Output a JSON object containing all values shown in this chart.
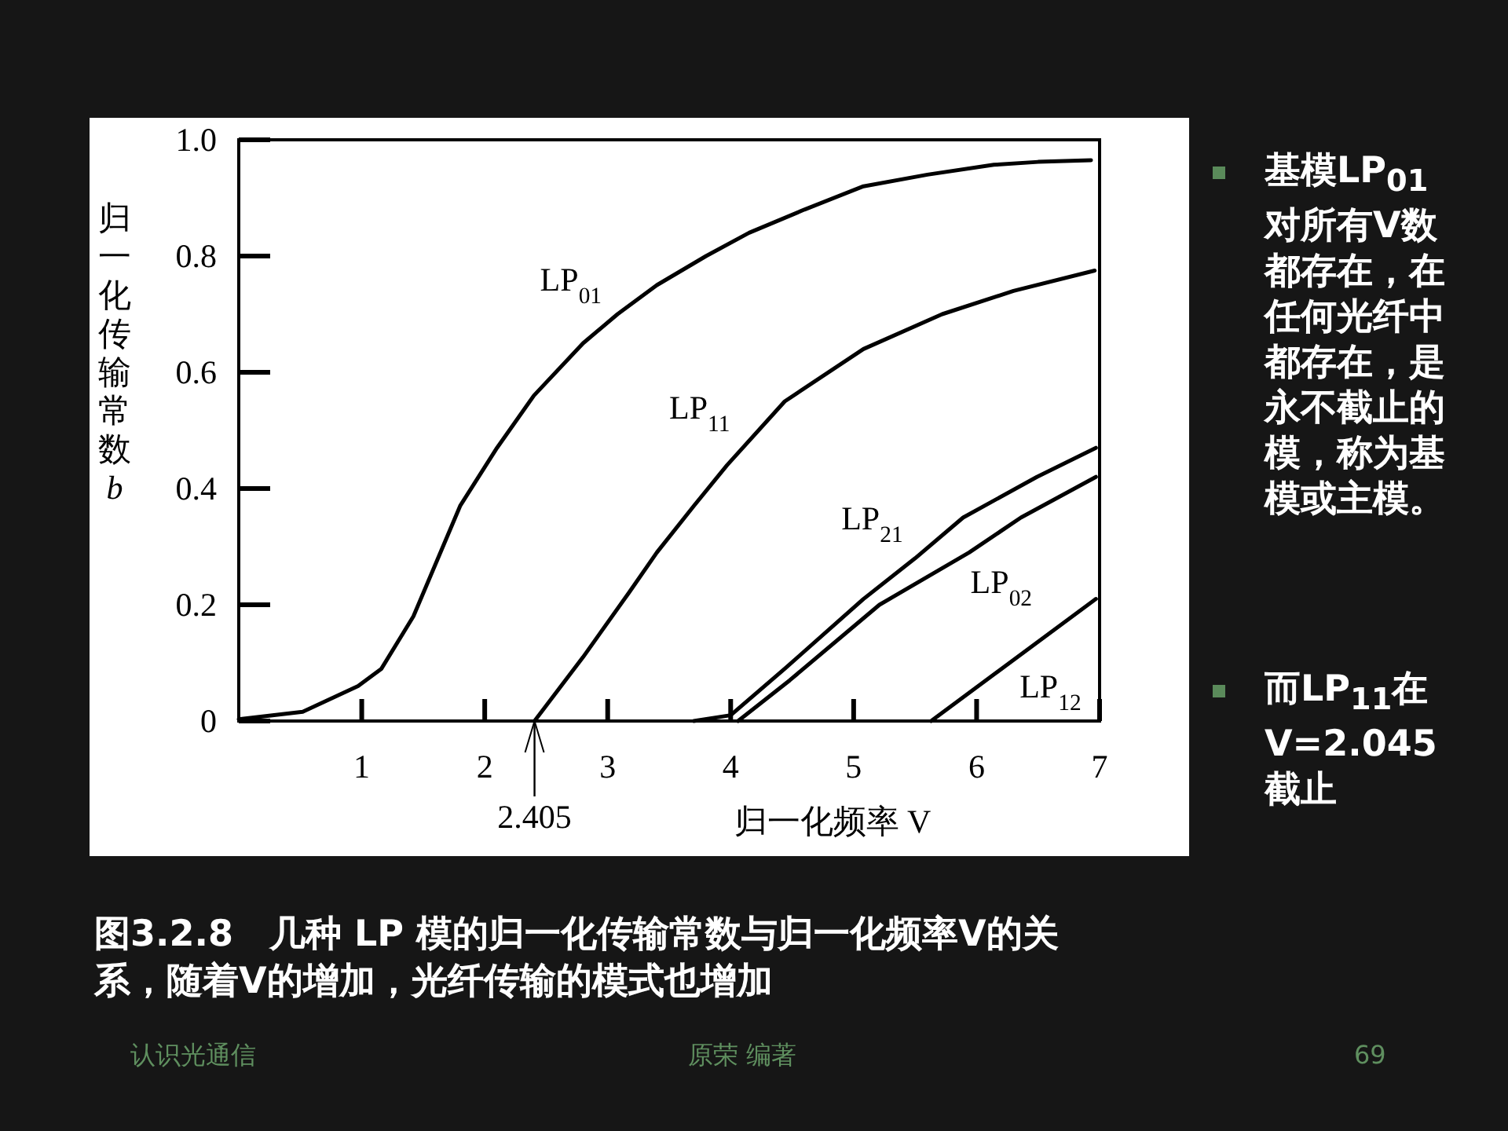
{
  "chart_data": {
    "type": "line",
    "title": "图3.2.8　几种 LP 模的归一化传输常数与归一化频率V的关系，随着V的增加，光纤传输的模式也增加",
    "xlabel": "归一化频率 V",
    "ylabel": "归一化传输常数 b",
    "xlim": [
      0,
      7
    ],
    "ylim": [
      0,
      1
    ],
    "xticks": [
      1,
      2,
      3,
      4,
      5,
      6,
      7
    ],
    "yticks": [
      0,
      0.2,
      0.4,
      0.6,
      0.8,
      {
        "value": 1,
        "label": "1.0"
      }
    ],
    "series": [
      {
        "name": "LP$_{01}$",
        "color": "#000000",
        "x": [
          0,
          0.52,
          0.97,
          1.16,
          1.42,
          1.8,
          2.1,
          2.4,
          2.8,
          3.08,
          3.4,
          3.8,
          4.15,
          4.6,
          5.08,
          5.6,
          6.14,
          6.5,
          6.93
        ],
        "values": [
          0.003,
          0.016,
          0.06,
          0.09,
          0.18,
          0.37,
          0.47,
          0.56,
          0.65,
          0.7,
          0.75,
          0.8,
          0.84,
          0.88,
          0.92,
          0.94,
          0.957,
          0.962,
          0.965
        ]
      },
      {
        "name": "LP$_{11}$",
        "color": "#000000",
        "x": [
          2.405,
          2.8,
          3.17,
          3.4,
          3.7,
          3.97,
          4.44,
          5.08,
          5.72,
          6.3,
          6.96
        ],
        "values": [
          0,
          0.11,
          0.22,
          0.29,
          0.37,
          0.44,
          0.55,
          0.64,
          0.7,
          0.74,
          0.775
        ]
      },
      {
        "name": "LP$_{21}$",
        "color": "#000000",
        "x": [
          3.7,
          4.0,
          4.44,
          5.08,
          5.5,
          5.89,
          6.49,
          6.97
        ],
        "values": [
          0,
          0.01,
          0.09,
          0.21,
          0.28,
          0.35,
          0.42,
          0.47
        ]
      },
      {
        "name": "LP$_{02}$",
        "color": "#000000",
        "x": [
          4.06,
          4.48,
          5.21,
          5.94,
          6.36,
          6.97
        ],
        "values": [
          0,
          0.07,
          0.2,
          0.29,
          0.35,
          0.42
        ]
      },
      {
        "name": "LP$_{12}$",
        "color": "#000000",
        "x": [
          5.63,
          6.14,
          6.97
        ],
        "values": [
          0,
          0.08,
          0.21
        ]
      }
    ],
    "annotations": [
      {
        "text": "2.405",
        "x": 2.405,
        "y": 0
      },
      "基模LP$_{01}$对所有V数都存在，在任何光纤中都存在，是永不截止的模，称为基模或主模。",
      "而LP$_{11}$在V=2.045截止",
      "认识光通信",
      "原荣  编著",
      "69"
    ]
  }
}
